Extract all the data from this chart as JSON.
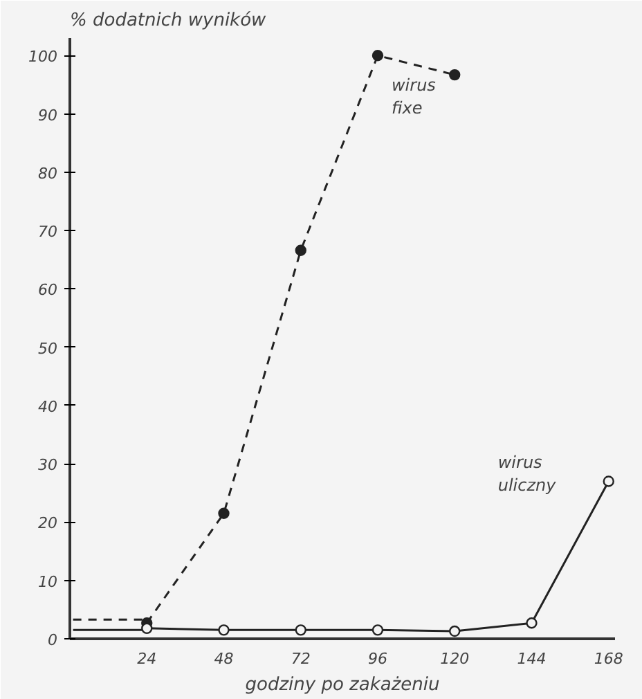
{
  "chart_data": {
    "type": "line",
    "xlabel": "godziny po zakażeniu",
    "ylabel": "% dodatnich wyników",
    "xlim": [
      0,
      170
    ],
    "ylim": [
      0,
      103
    ],
    "xticks": [
      24,
      48,
      72,
      96,
      120,
      144,
      168
    ],
    "yticks": [
      0,
      10,
      20,
      30,
      40,
      50,
      60,
      70,
      80,
      90,
      100
    ],
    "grid": false,
    "legend": false,
    "series": [
      {
        "color": "#222222",
        "line_style": "dashed",
        "marker": "none",
        "x": [
          1,
          24
        ],
        "values": [
          3.3,
          3.3
        ]
      },
      {
        "name": "wirus fixe",
        "color": "#222222",
        "line_style": "dashed",
        "marker": "circle",
        "x": [
          24,
          48,
          72,
          96,
          120
        ],
        "values": [
          2.7,
          21.5,
          66.6,
          100,
          96.7
        ]
      },
      {
        "color": "#222222",
        "line_style": "solid",
        "marker": "none",
        "x": [
          1,
          24
        ],
        "values": [
          1.5,
          1.5
        ]
      },
      {
        "name": "wirus uliczny",
        "color": "#222222",
        "line_style": "solid",
        "marker": "circle",
        "x": [
          24,
          48,
          72,
          96,
          120,
          144,
          168
        ],
        "values": [
          1.8,
          1.5,
          1.5,
          1.5,
          1.3,
          2.7,
          27
        ]
      }
    ]
  }
}
